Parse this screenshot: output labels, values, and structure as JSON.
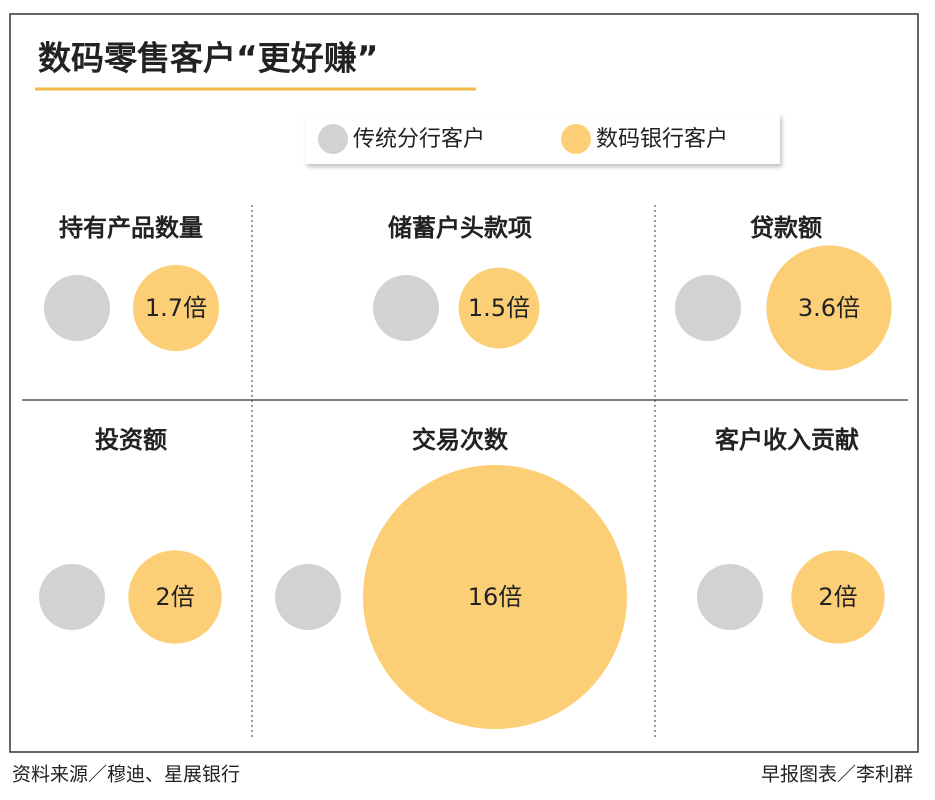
{
  "title": "数码零售客户“更好赚”",
  "legend": [
    {
      "name": "传统分行客户",
      "color": "#d1d2d4"
    },
    {
      "name": "数码银行客户",
      "color": "#fccf76"
    }
  ],
  "chart_data": [
    {
      "type": "bubble",
      "title": "持有产品数量",
      "values": [
        1,
        1.7
      ],
      "value_labels": [
        null,
        "1.7倍"
      ]
    },
    {
      "type": "bubble",
      "title": "储蓄户头款项",
      "values": [
        1,
        1.5
      ],
      "value_labels": [
        null,
        "1.5倍"
      ]
    },
    {
      "type": "bubble",
      "title": "贷款额",
      "values": [
        1,
        3.6
      ],
      "value_labels": [
        null,
        "3.6倍"
      ]
    },
    {
      "type": "bubble",
      "title": "投资额",
      "values": [
        1,
        2
      ],
      "value_labels": [
        null,
        "2倍"
      ]
    },
    {
      "type": "bubble",
      "title": "交易次数",
      "values": [
        1,
        16
      ],
      "value_labels": [
        null,
        "16倍"
      ]
    },
    {
      "type": "bubble",
      "title": "客户收入贡献",
      "values": [
        1,
        2
      ],
      "value_labels": [
        null,
        "2倍"
      ]
    }
  ],
  "source": "资料来源／穆迪、星展银行",
  "credit": "早报图表／李利群"
}
